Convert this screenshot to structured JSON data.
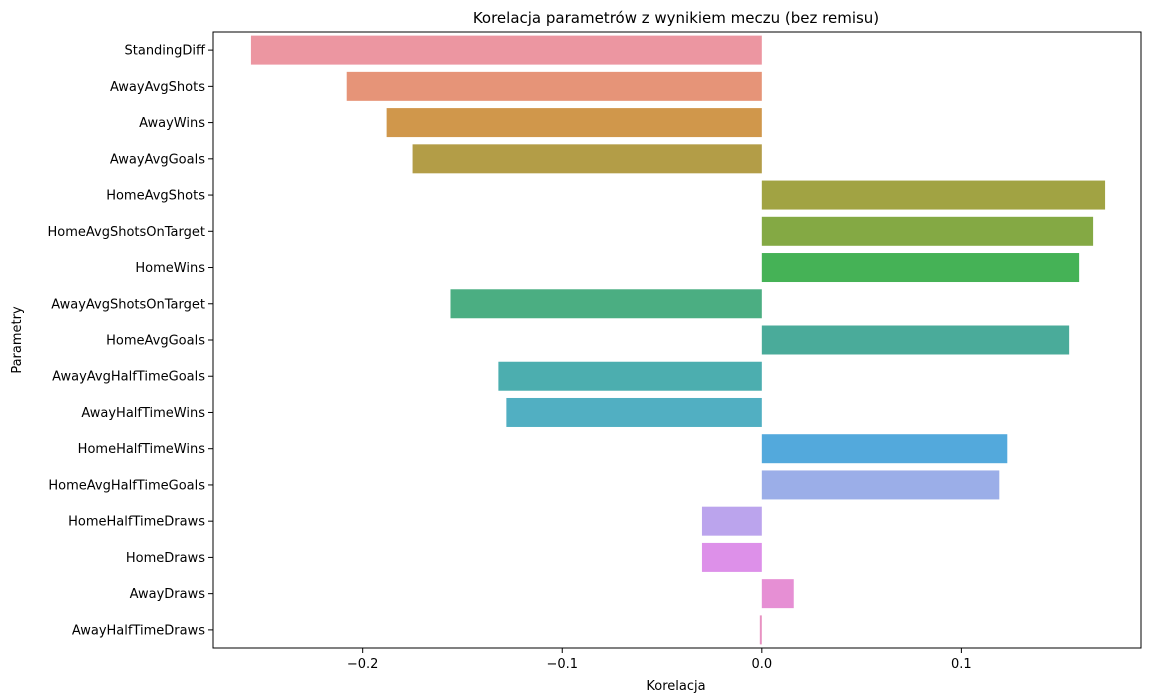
{
  "chart_data": {
    "type": "bar",
    "orientation": "horizontal",
    "title": "Korelacja parametrów z wynikiem meczu (bez remisu)",
    "xlabel": "Korelacja",
    "ylabel": "Parametry",
    "xlim": [
      -0.275,
      0.19
    ],
    "xticks": [
      -0.2,
      -0.1,
      0.0,
      0.1
    ],
    "xtick_labels": [
      "−0.2",
      "−0.1",
      "0.0",
      "0.1"
    ],
    "grid": false,
    "legend": "none",
    "categories": [
      "StandingDiff",
      "AwayAvgShots",
      "AwayWins",
      "AwayAvgGoals",
      "HomeAvgShots",
      "HomeAvgShotsOnTarget",
      "HomeWins",
      "AwayAvgShotsOnTarget",
      "HomeAvgGoals",
      "AwayAvgHalfTimeGoals",
      "AwayHalfTimeWins",
      "HomeHalfTimeWins",
      "HomeAvgHalfTimeGoals",
      "HomeHalfTimeDraws",
      "HomeDraws",
      "AwayDraws",
      "AwayHalfTimeDraws"
    ],
    "values": [
      -0.256,
      -0.208,
      -0.188,
      -0.175,
      0.172,
      0.166,
      0.159,
      -0.156,
      0.154,
      -0.132,
      -0.128,
      0.123,
      0.119,
      -0.03,
      -0.03,
      0.016,
      -0.001
    ],
    "colors": [
      "#ec96a1",
      "#e69478",
      "#d0974b",
      "#b39d47",
      "#a1a343",
      "#84a944",
      "#45b256",
      "#4bae82",
      "#4aab9a",
      "#4caeaf",
      "#51afc2",
      "#53a9dc",
      "#9baee8",
      "#bba4ed",
      "#dd90e9",
      "#e68fd4",
      "#e892c2"
    ]
  }
}
